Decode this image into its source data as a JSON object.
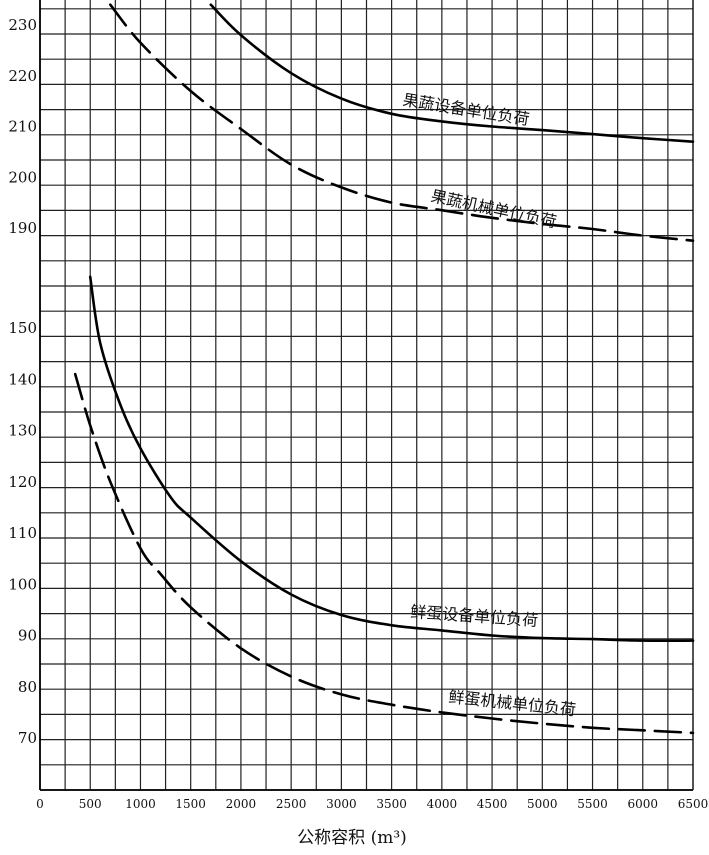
{
  "chart_data": [
    {
      "type": "line",
      "panel": "upper",
      "title": "",
      "xlabel": "公称容积 (m³)",
      "ylabel": "",
      "xlim": [
        0,
        6500
      ],
      "ylim": [
        187,
        234
      ],
      "x_ticks": [
        0,
        500,
        1000,
        1500,
        2000,
        2500,
        3000,
        3500,
        4000,
        4500,
        5000,
        5500,
        6000,
        6500
      ],
      "x_tick_labels": [
        "0",
        "500",
        "1000",
        "1500",
        "2000",
        "2500",
        "3000",
        "3500",
        "4000",
        "4500",
        "5000",
        "5500",
        "6000",
        "6500"
      ],
      "y_ticks": [
        190,
        200,
        210,
        220,
        230
      ],
      "y_tick_labels": [
        "190",
        "200",
        "210",
        "220",
        "230"
      ],
      "grid": true,
      "series": [
        {
          "name": "果蔬设备单位负荷",
          "style": "solid",
          "x": [
            1700,
            2000,
            2500,
            3000,
            3500,
            4000,
            4500,
            5000,
            5500,
            6000,
            6500
          ],
          "y": [
            234,
            228,
            220.5,
            215.5,
            212.5,
            211,
            210,
            209.3,
            208.5,
            207.7,
            207
          ]
        },
        {
          "name": "果蔬机械单位负荷",
          "style": "dashed",
          "x": [
            700,
            1000,
            1500,
            2000,
            2500,
            3000,
            3500,
            4000,
            4500,
            5000,
            5500,
            6000,
            6500
          ],
          "y": [
            234,
            226.5,
            217,
            209.5,
            202.5,
            198,
            195,
            193.5,
            192,
            190.8,
            189.8,
            188.5,
            187.5
          ]
        }
      ]
    },
    {
      "type": "line",
      "panel": "lower",
      "title": "",
      "xlabel": "公称容积 (m³)",
      "ylabel": "",
      "xlim": [
        0,
        6500
      ],
      "ylim": [
        60,
        160
      ],
      "x_ticks": [
        0,
        500,
        1000,
        1500,
        2000,
        2500,
        3000,
        3500,
        4000,
        4500,
        5000,
        5500,
        6000,
        6500
      ],
      "x_tick_labels": [
        "0",
        "500",
        "1000",
        "1500",
        "2000",
        "2500",
        "3000",
        "3500",
        "4000",
        "4500",
        "5000",
        "5500",
        "6000",
        "6500"
      ],
      "y_ticks": [
        70,
        80,
        90,
        100,
        110,
        120,
        130,
        140,
        150
      ],
      "y_tick_labels": [
        "70",
        "80",
        "90",
        "100",
        "110",
        "120",
        "130",
        "140",
        "150"
      ],
      "grid": true,
      "series": [
        {
          "name": "鲜蛋设备单位负荷",
          "style": "solid",
          "x": [
            500,
            600,
            800,
            1000,
            1300,
            1500,
            2000,
            2500,
            3000,
            3500,
            4000,
            4500,
            5000,
            5500,
            6000,
            6500
          ],
          "y": [
            160,
            147,
            135,
            126.5,
            117,
            113,
            104.5,
            98,
            94,
            92,
            91,
            90,
            89.5,
            89.3,
            89,
            89
          ]
        },
        {
          "name": "鲜蛋机械单位负荷",
          "style": "dashed",
          "x": [
            350,
            500,
            700,
            1000,
            1200,
            1500,
            2000,
            2500,
            3000,
            3500,
            4000,
            4500,
            5000,
            5500,
            6000,
            6500
          ],
          "y": [
            141,
            131,
            120,
            107,
            102,
            95.5,
            87.5,
            82,
            78.5,
            76.5,
            75,
            73.8,
            72.8,
            72,
            71.5,
            71
          ]
        }
      ]
    }
  ]
}
